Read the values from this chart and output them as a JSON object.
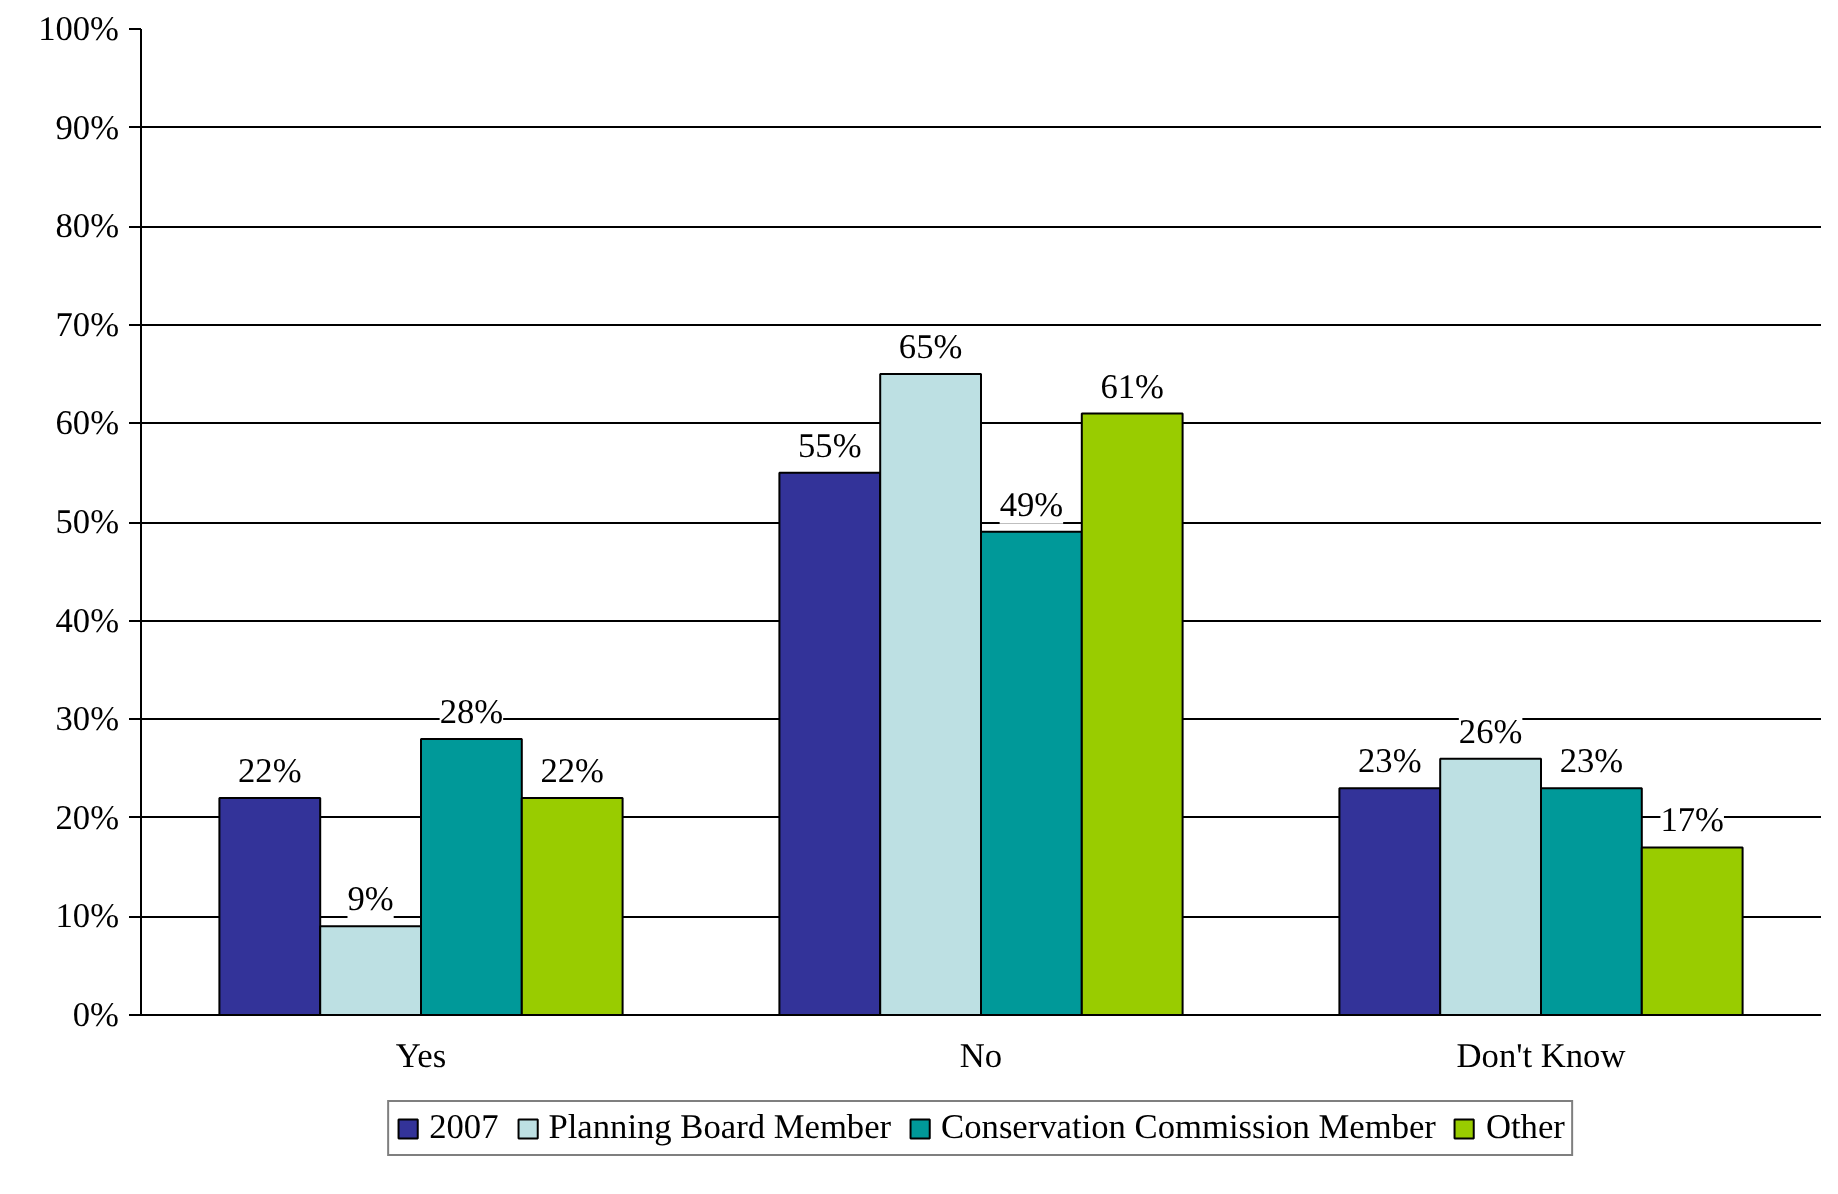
{
  "chart_data": {
    "type": "bar",
    "categories": [
      "Yes",
      "No",
      "Don't Know"
    ],
    "series": [
      {
        "name": "2007",
        "color": "#333399",
        "values": [
          22,
          55,
          23
        ],
        "value_labels": [
          "22%",
          "55%",
          "23%"
        ]
      },
      {
        "name": "Planning Board Member",
        "color": "#bde0e3",
        "values": [
          9,
          65,
          26
        ],
        "value_labels": [
          "9%",
          "65%",
          "26%"
        ]
      },
      {
        "name": "Conservation Commission Member",
        "color": "#009999",
        "values": [
          28,
          49,
          23
        ],
        "value_labels": [
          "28%",
          "49%",
          "23%"
        ]
      },
      {
        "name": "Other",
        "color": "#99cc00",
        "values": [
          22,
          61,
          17
        ],
        "value_labels": [
          "22%",
          "61%",
          "17%"
        ]
      }
    ],
    "ylim": [
      0,
      100
    ],
    "yticks": [
      {
        "value": 0,
        "label": "0%"
      },
      {
        "value": 10,
        "label": "10%"
      },
      {
        "value": 20,
        "label": "20%"
      },
      {
        "value": 30,
        "label": "30%"
      },
      {
        "value": 40,
        "label": "40%"
      },
      {
        "value": 50,
        "label": "50%"
      },
      {
        "value": 60,
        "label": "60%"
      },
      {
        "value": 70,
        "label": "70%"
      },
      {
        "value": 80,
        "label": "80%"
      },
      {
        "value": 90,
        "label": "90%"
      },
      {
        "value": 100,
        "label": "100%"
      }
    ],
    "grid": "y",
    "legend": "bottom"
  }
}
